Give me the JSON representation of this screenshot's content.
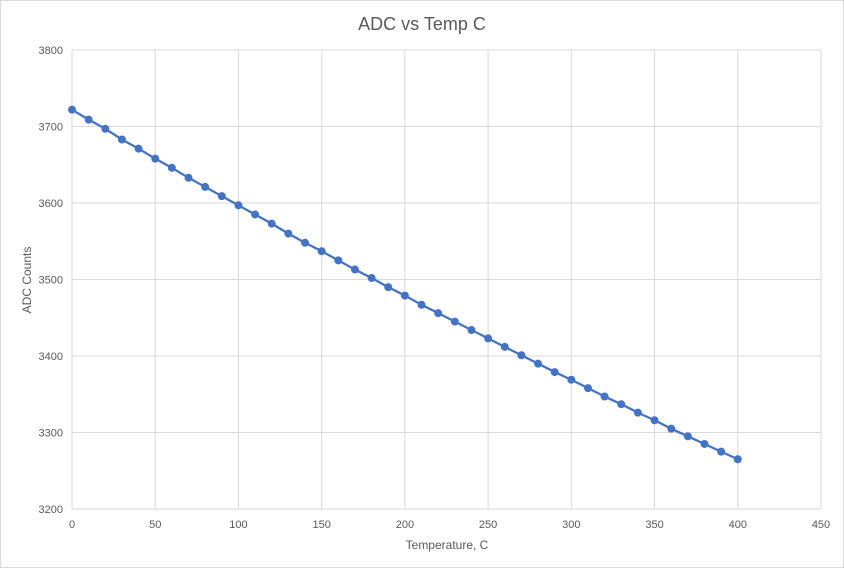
{
  "chart_data": {
    "type": "line",
    "title": "ADC vs Temp C",
    "xlabel": "Temperature,  C",
    "ylabel": "ADC Counts",
    "xlim": [
      0,
      450
    ],
    "ylim": [
      3200,
      3800
    ],
    "x_ticks": [
      0,
      50,
      100,
      150,
      200,
      250,
      300,
      350,
      400,
      450
    ],
    "y_ticks": [
      3200,
      3300,
      3400,
      3500,
      3600,
      3700,
      3800
    ],
    "grid": true,
    "legend": "none",
    "series": [
      {
        "color": "#4472c4",
        "markers": true,
        "x": [
          0,
          10,
          20,
          30,
          40,
          50,
          60,
          70,
          80,
          90,
          100,
          110,
          120,
          130,
          140,
          150,
          160,
          170,
          180,
          190,
          200,
          210,
          220,
          230,
          240,
          250,
          260,
          270,
          280,
          290,
          300,
          310,
          320,
          330,
          340,
          350,
          360,
          370,
          380,
          390,
          400
        ],
        "y": [
          3722,
          3709,
          3697,
          3683,
          3671,
          3658,
          3646,
          3633,
          3621,
          3609,
          3597,
          3585,
          3573,
          3560,
          3548,
          3537,
          3525,
          3513,
          3502,
          3490,
          3479,
          3467,
          3456,
          3445,
          3434,
          3423,
          3412,
          3401,
          3390,
          3379,
          3369,
          3358,
          3347,
          3337,
          3326,
          3316,
          3305,
          3295,
          3285,
          3275,
          3265
        ]
      }
    ]
  }
}
